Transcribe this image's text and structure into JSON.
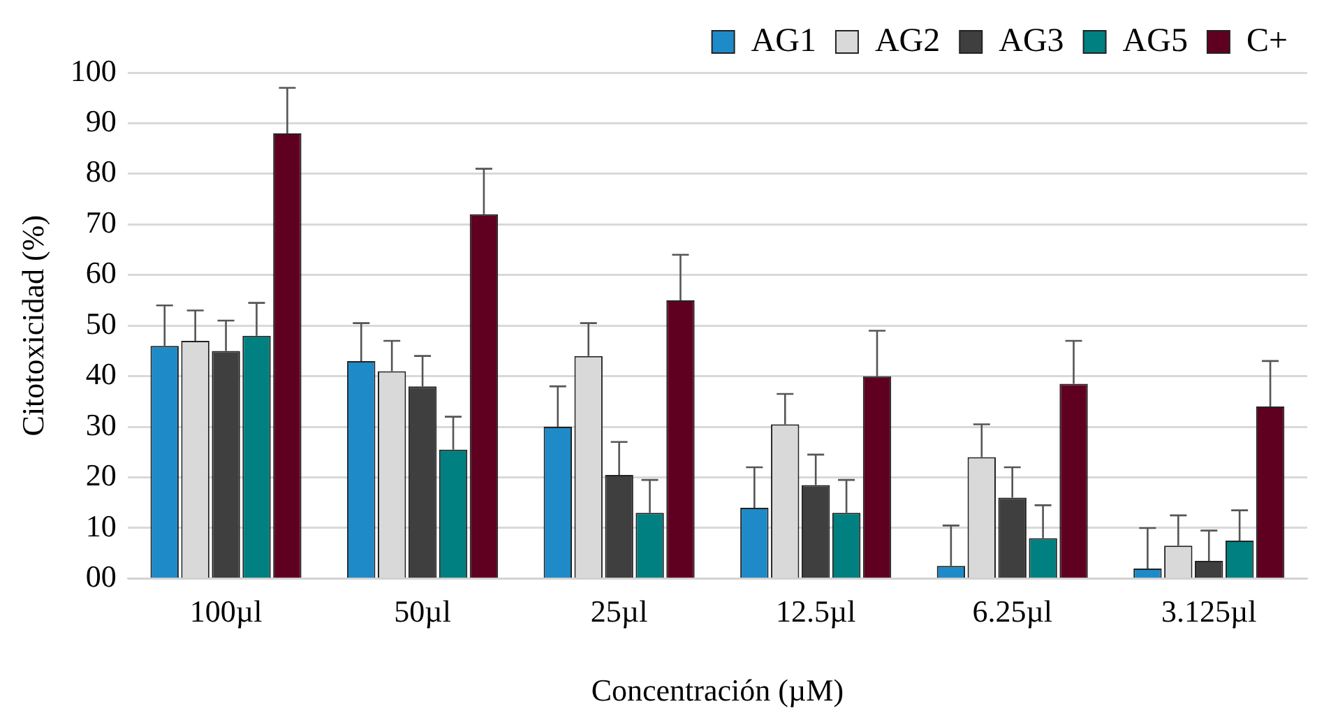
{
  "chart_data": {
    "type": "bar",
    "xlabel": "Concentración (µM)",
    "ylabel": "Citotoxicidad (%)",
    "categories": [
      "100µl",
      "50µl",
      "25µl",
      "12.5µl",
      "6.25µl",
      "3.125µl"
    ],
    "series": [
      {
        "name": "AG1",
        "color": "#1f8ac8",
        "values": [
          46,
          43,
          30,
          14,
          2.5,
          2
        ],
        "errors": [
          [
            46,
            54
          ],
          [
            43,
            50.5
          ],
          [
            30,
            38
          ],
          [
            14,
            22
          ],
          [
            2.5,
            10.5
          ],
          [
            2,
            10
          ]
        ]
      },
      {
        "name": "AG2",
        "color": "#d9d9d9",
        "values": [
          47,
          41,
          44,
          30.5,
          24,
          6.5
        ],
        "errors": [
          [
            47,
            53
          ],
          [
            41,
            47
          ],
          [
            44,
            50.5
          ],
          [
            30.5,
            36.5
          ],
          [
            24,
            30.5
          ],
          [
            6.5,
            12.5
          ]
        ]
      },
      {
        "name": "AG3",
        "color": "#3f3f3f",
        "values": [
          45,
          38,
          20.5,
          18.5,
          16,
          3.5
        ],
        "errors": [
          [
            45,
            51
          ],
          [
            38,
            44
          ],
          [
            20.5,
            27
          ],
          [
            18.5,
            24.5
          ],
          [
            16,
            22
          ],
          [
            3.5,
            9.5
          ]
        ]
      },
      {
        "name": "AG5",
        "color": "#008080",
        "values": [
          48,
          25.5,
          13,
          13,
          8,
          7.5
        ],
        "errors": [
          [
            48,
            54.5
          ],
          [
            25.5,
            32
          ],
          [
            13,
            19.5
          ],
          [
            13,
            19.5
          ],
          [
            8,
            14.5
          ],
          [
            7.5,
            13.5
          ]
        ]
      },
      {
        "name": "C+",
        "color": "#600020",
        "values": [
          88,
          72,
          55,
          40,
          38.5,
          34
        ],
        "errors": [
          [
            88,
            97
          ],
          [
            72,
            81
          ],
          [
            55,
            64
          ],
          [
            40,
            49
          ],
          [
            38.5,
            47
          ],
          [
            34,
            43
          ]
        ]
      }
    ],
    "ylim": [
      0,
      100
    ],
    "yticks": [
      {
        "value": 0,
        "label": "00"
      },
      10,
      20,
      30,
      40,
      50,
      60,
      70,
      80,
      90,
      100
    ],
    "grid": "y",
    "legend": "top right"
  }
}
